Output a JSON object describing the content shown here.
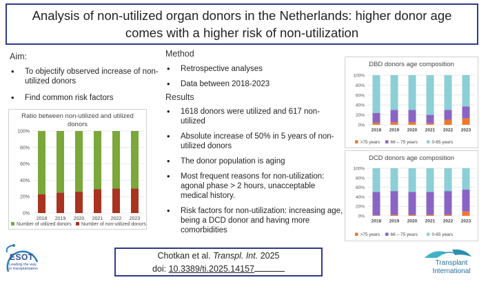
{
  "title": "Analysis of non-utilized organ donors in the Netherlands: higher donor age comes with a higher risk of non-utilization",
  "aim": {
    "heading": "Aim:",
    "bullets": [
      "To objectify observed increase of non-utilized donors",
      "Find common risk factors"
    ]
  },
  "method": {
    "heading": "Method",
    "bullets": [
      "Retrospective analyses",
      "Data between 2018-2023"
    ]
  },
  "results": {
    "heading": "Results",
    "bullets": [
      "1618 donors were utilized and 617 non-utilized",
      "Absolute increase of 50% in 5 years of non-utilized donors",
      "The donor population is aging",
      "Most frequent reasons for non-utilization: agonal phase > 2 hours, unacceptable medical history.",
      "Risk factors for non-utilization: increasing age, being a DCD donor and having more comorbidities"
    ]
  },
  "citation": {
    "authors": "Chotkan et al.",
    "journal": "Transpl. Int.",
    "year": "2025",
    "doi_prefix": "doi:",
    "doi": "10.3389/ti.2025.14157"
  },
  "logos": {
    "esot": {
      "name": "ESOT",
      "tagline_1": "Leading the way",
      "tagline_2": "in transplantation"
    },
    "transplant_international": {
      "line1": "Transplant",
      "line2": "International"
    }
  },
  "colors": {
    "brand_blue": "#2b3a8a",
    "utilized_green": "#7aa83a",
    "nonutilized_red": "#a8331f",
    "age_75plus": "#f0772b",
    "age_66_75": "#8a64c4",
    "age_0_65": "#8ccfd6"
  },
  "chart_data": [
    {
      "type": "bar",
      "stacked": true,
      "title": "Ratio between non-utilized and utilized donors",
      "categories": [
        "2018",
        "2019",
        "2020",
        "2021",
        "2022",
        "2023"
      ],
      "y_ticks": [
        "0%",
        "20%",
        "40%",
        "60%",
        "80%",
        "100%"
      ],
      "ylim": [
        0,
        100
      ],
      "series": [
        {
          "name": "Number of non-utilized donors",
          "values": [
            23,
            25,
            26,
            29,
            30,
            30
          ]
        },
        {
          "name": "Number of utilized donors",
          "values": [
            77,
            75,
            74,
            71,
            70,
            70
          ]
        }
      ],
      "legend_order": [
        1,
        0
      ],
      "legend_position": "bottom"
    },
    {
      "type": "bar",
      "stacked": true,
      "title": "DBD donors age composition",
      "categories": [
        "2018",
        "2019",
        "2020",
        "2021",
        "2022",
        "2023"
      ],
      "y_ticks": [
        "0%",
        "20%",
        "40%",
        "60%",
        "80%",
        "100%"
      ],
      "ylim": [
        0,
        100
      ],
      "series": [
        {
          "name": ">75 years",
          "values": [
            4,
            5,
            5,
            3,
            10,
            13
          ]
        },
        {
          "name": "66 – 75 years",
          "values": [
            20,
            25,
            25,
            17,
            20,
            24
          ]
        },
        {
          "name": "0-65 years",
          "values": [
            76,
            70,
            70,
            80,
            70,
            63
          ]
        }
      ],
      "legend_position": "bottom"
    },
    {
      "type": "bar",
      "stacked": true,
      "title": "DCD donors age composition",
      "categories": [
        "2018",
        "2019",
        "2020",
        "2021",
        "2022",
        "2023"
      ],
      "y_ticks": [
        "0%",
        "20%",
        "40%",
        "60%",
        "80%",
        "100%"
      ],
      "ylim": [
        0,
        100
      ],
      "series": [
        {
          "name": ">75 years",
          "values": [
            1,
            2,
            2,
            2,
            2,
            9
          ]
        },
        {
          "name": "66 – 75 years",
          "values": [
            49,
            50,
            48,
            48,
            50,
            46
          ]
        },
        {
          "name": "0-65 years",
          "values": [
            50,
            48,
            50,
            50,
            48,
            45
          ]
        }
      ],
      "legend_position": "bottom"
    }
  ]
}
